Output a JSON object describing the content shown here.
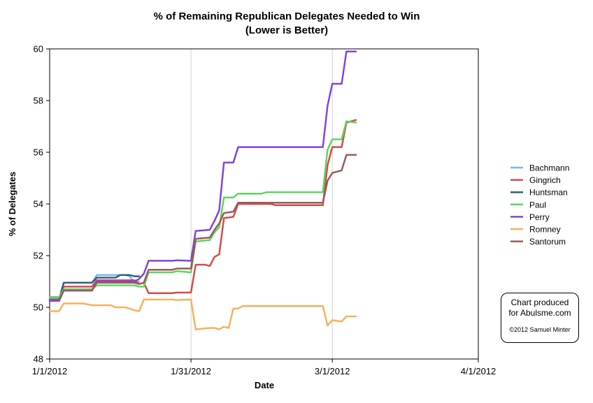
{
  "chart_data": {
    "type": "line",
    "title": "% of Remaining Republican Delegates Needed to Win",
    "subtitle": "(Lower is Better)",
    "xlabel": "Date",
    "ylabel": "% of Delegates",
    "ylim": [
      48,
      60
    ],
    "yticks": [
      "48",
      "50",
      "52",
      "54",
      "56",
      "58",
      "60"
    ],
    "xlim": [
      "2012-01-01",
      "2012-04-01"
    ],
    "xticks": [
      {
        "date": "2012-01-01",
        "label": "1/1/2012"
      },
      {
        "date": "2012-01-31",
        "label": "1/31/2012"
      },
      {
        "date": "2012-03-01",
        "label": "3/1/2012"
      },
      {
        "date": "2012-04-01",
        "label": "4/1/2012"
      }
    ],
    "grid": "vertical lines at x ticks",
    "legend_position": "right",
    "series": [
      {
        "name": "Bachmann",
        "color": "#7fb6ea",
        "points": [
          [
            "2012-01-01",
            50.35
          ],
          [
            "2012-01-03",
            50.35
          ],
          [
            "2012-01-04",
            50.95
          ],
          [
            "2012-01-10",
            50.95
          ],
          [
            "2012-01-11",
            51.25
          ],
          [
            "2012-01-17",
            51.25
          ],
          [
            "2012-01-18",
            51.2
          ],
          [
            "2012-01-19",
            50.95
          ],
          [
            "2012-01-20",
            51.0
          ]
        ]
      },
      {
        "name": "Gingrich",
        "color": "#d44c4c",
        "points": [
          [
            "2012-01-01",
            50.25
          ],
          [
            "2012-01-03",
            50.25
          ],
          [
            "2012-01-04",
            50.8
          ],
          [
            "2012-01-10",
            50.8
          ],
          [
            "2012-01-11",
            51.05
          ],
          [
            "2012-01-19",
            51.05
          ],
          [
            "2012-01-20",
            50.9
          ],
          [
            "2012-01-21",
            50.95
          ],
          [
            "2012-01-22",
            50.55
          ],
          [
            "2012-01-27",
            50.55
          ],
          [
            "2012-01-28",
            50.57
          ],
          [
            "2012-01-31",
            50.57
          ],
          [
            "2012-02-01",
            51.65
          ],
          [
            "2012-02-03",
            51.65
          ],
          [
            "2012-02-04",
            51.6
          ],
          [
            "2012-02-05",
            51.95
          ],
          [
            "2012-02-06",
            52.05
          ],
          [
            "2012-02-07",
            53.45
          ],
          [
            "2012-02-09",
            53.5
          ],
          [
            "2012-02-10",
            54.0
          ],
          [
            "2012-02-17",
            54.0
          ],
          [
            "2012-02-18",
            53.95
          ],
          [
            "2012-02-28",
            53.95
          ],
          [
            "2012-02-29",
            55.5
          ],
          [
            "2012-03-01",
            56.2
          ],
          [
            "2012-03-03",
            56.2
          ],
          [
            "2012-03-04",
            57.15
          ],
          [
            "2012-03-06",
            57.25
          ]
        ]
      },
      {
        "name": "Huntsman",
        "color": "#2f5f86",
        "points": [
          [
            "2012-01-01",
            50.3
          ],
          [
            "2012-01-03",
            50.3
          ],
          [
            "2012-01-04",
            50.95
          ],
          [
            "2012-01-10",
            50.95
          ],
          [
            "2012-01-11",
            51.15
          ],
          [
            "2012-01-15",
            51.15
          ],
          [
            "2012-01-16",
            51.25
          ],
          [
            "2012-01-18",
            51.25
          ],
          [
            "2012-01-19",
            51.2
          ],
          [
            "2012-01-20",
            51.2
          ]
        ]
      },
      {
        "name": "Paul",
        "color": "#5fd55f",
        "points": [
          [
            "2012-01-01",
            50.4
          ],
          [
            "2012-01-03",
            50.4
          ],
          [
            "2012-01-04",
            50.7
          ],
          [
            "2012-01-10",
            50.7
          ],
          [
            "2012-01-11",
            50.85
          ],
          [
            "2012-01-19",
            50.85
          ],
          [
            "2012-01-20",
            50.8
          ],
          [
            "2012-01-21",
            50.8
          ],
          [
            "2012-01-22",
            51.35
          ],
          [
            "2012-01-27",
            51.35
          ],
          [
            "2012-01-28",
            51.4
          ],
          [
            "2012-01-31",
            51.35
          ],
          [
            "2012-02-01",
            52.55
          ],
          [
            "2012-02-04",
            52.6
          ],
          [
            "2012-02-05",
            52.9
          ],
          [
            "2012-02-06",
            53.1
          ],
          [
            "2012-02-07",
            54.25
          ],
          [
            "2012-02-09",
            54.25
          ],
          [
            "2012-02-10",
            54.4
          ],
          [
            "2012-02-15",
            54.4
          ],
          [
            "2012-02-16",
            54.45
          ],
          [
            "2012-02-28",
            54.45
          ],
          [
            "2012-02-29",
            56.1
          ],
          [
            "2012-03-01",
            56.5
          ],
          [
            "2012-03-03",
            56.5
          ],
          [
            "2012-03-04",
            57.2
          ],
          [
            "2012-03-06",
            57.15
          ]
        ]
      },
      {
        "name": "Perry",
        "color": "#8044e0",
        "points": [
          [
            "2012-01-01",
            50.25
          ],
          [
            "2012-01-03",
            50.25
          ],
          [
            "2012-01-04",
            50.65
          ],
          [
            "2012-01-10",
            50.65
          ],
          [
            "2012-01-11",
            51.0
          ],
          [
            "2012-01-18",
            51.0
          ],
          [
            "2012-01-19",
            51.0
          ],
          [
            "2012-01-20",
            51.1
          ],
          [
            "2012-01-21",
            51.3
          ],
          [
            "2012-01-22",
            51.8
          ],
          [
            "2012-01-27",
            51.8
          ],
          [
            "2012-01-28",
            51.82
          ],
          [
            "2012-01-31",
            51.8
          ],
          [
            "2012-02-01",
            52.95
          ],
          [
            "2012-02-04",
            53.0
          ],
          [
            "2012-02-05",
            53.35
          ],
          [
            "2012-02-06",
            53.75
          ],
          [
            "2012-02-07",
            55.6
          ],
          [
            "2012-02-09",
            55.6
          ],
          [
            "2012-02-10",
            56.2
          ],
          [
            "2012-02-28",
            56.2
          ],
          [
            "2012-02-29",
            57.8
          ],
          [
            "2012-03-01",
            58.65
          ],
          [
            "2012-03-03",
            58.65
          ],
          [
            "2012-03-04",
            59.9
          ],
          [
            "2012-03-06",
            59.9
          ]
        ]
      },
      {
        "name": "Romney",
        "color": "#f6b25c",
        "points": [
          [
            "2012-01-01",
            49.85
          ],
          [
            "2012-01-03",
            49.85
          ],
          [
            "2012-01-04",
            50.15
          ],
          [
            "2012-01-08",
            50.15
          ],
          [
            "2012-01-09",
            50.12
          ],
          [
            "2012-01-10",
            50.08
          ],
          [
            "2012-01-14",
            50.08
          ],
          [
            "2012-01-15",
            50.0
          ],
          [
            "2012-01-17",
            50.0
          ],
          [
            "2012-01-18",
            49.95
          ],
          [
            "2012-01-19",
            49.88
          ],
          [
            "2012-01-20",
            49.85
          ],
          [
            "2012-01-21",
            50.3
          ],
          [
            "2012-01-27",
            50.3
          ],
          [
            "2012-01-28",
            50.28
          ],
          [
            "2012-01-31",
            50.3
          ],
          [
            "2012-02-01",
            49.15
          ],
          [
            "2012-02-04",
            49.2
          ],
          [
            "2012-02-05",
            49.2
          ],
          [
            "2012-02-06",
            49.15
          ],
          [
            "2012-02-07",
            49.25
          ],
          [
            "2012-02-08",
            49.2
          ],
          [
            "2012-02-09",
            49.95
          ],
          [
            "2012-02-10",
            49.95
          ],
          [
            "2012-02-11",
            50.05
          ],
          [
            "2012-02-28",
            50.05
          ],
          [
            "2012-02-29",
            49.3
          ],
          [
            "2012-03-01",
            49.5
          ],
          [
            "2012-03-03",
            49.45
          ],
          [
            "2012-03-04",
            49.65
          ],
          [
            "2012-03-06",
            49.65
          ]
        ]
      },
      {
        "name": "Santorum",
        "color": "#9a5b5b",
        "points": [
          [
            "2012-01-01",
            50.3
          ],
          [
            "2012-01-03",
            50.3
          ],
          [
            "2012-01-04",
            50.65
          ],
          [
            "2012-01-10",
            50.65
          ],
          [
            "2012-01-11",
            50.95
          ],
          [
            "2012-01-19",
            50.95
          ],
          [
            "2012-01-20",
            50.9
          ],
          [
            "2012-01-21",
            50.95
          ],
          [
            "2012-01-22",
            51.45
          ],
          [
            "2012-01-27",
            51.45
          ],
          [
            "2012-01-28",
            51.5
          ],
          [
            "2012-01-31",
            51.5
          ],
          [
            "2012-02-01",
            52.65
          ],
          [
            "2012-02-04",
            52.7
          ],
          [
            "2012-02-05",
            53.0
          ],
          [
            "2012-02-06",
            53.25
          ],
          [
            "2012-02-07",
            53.65
          ],
          [
            "2012-02-09",
            53.7
          ],
          [
            "2012-02-10",
            54.05
          ],
          [
            "2012-02-28",
            54.05
          ],
          [
            "2012-02-29",
            54.9
          ],
          [
            "2012-03-01",
            55.2
          ],
          [
            "2012-03-03",
            55.3
          ],
          [
            "2012-03-04",
            55.9
          ],
          [
            "2012-03-06",
            55.9
          ]
        ]
      }
    ]
  },
  "credit": {
    "line1": "Chart produced",
    "line2": "for Abulsme.com",
    "copyright": "©2012 Samuel Minter"
  }
}
